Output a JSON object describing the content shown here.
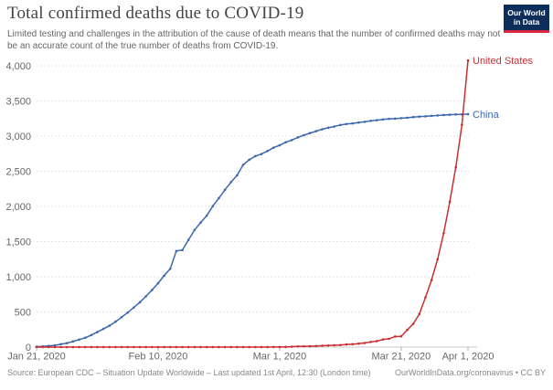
{
  "header": {
    "title": "Total confirmed deaths due to COVID-19",
    "subtitle": "Limited testing and challenges in the attribution of the cause of death means that the number of confirmed deaths may not be an accurate count of the true number of deaths from COVID-19."
  },
  "logo": {
    "line1": "Our World",
    "line2": "in Data",
    "bg_color": "#0d2e5a",
    "stripe_color": "#dc2740"
  },
  "footer": {
    "source": "Source: European CDC – Situation Update Worldwide – Last updated 1st April, 12:30 (London time)",
    "attribution": "OurWorldInData.org/coronavirus • CC BY"
  },
  "chart_data": {
    "type": "line",
    "title": "Total confirmed deaths due to COVID-19",
    "xlabel": "",
    "ylabel": "",
    "ylim": [
      0,
      4000
    ],
    "grid": "horizontal-dotted",
    "legend_position": "end-of-line-labels",
    "x_unit": "days since Jan 21, 2020 (one point per day)",
    "x_range": [
      "Jan 21, 2020",
      "Apr 1, 2020"
    ],
    "x_ticks": [
      {
        "day": 0,
        "label": "Jan 21, 2020"
      },
      {
        "day": 20,
        "label": "Feb 10, 2020"
      },
      {
        "day": 40,
        "label": "Mar 1, 2020"
      },
      {
        "day": 60,
        "label": "Mar 21, 2020"
      },
      {
        "day": 71,
        "label": "Apr 1, 2020"
      }
    ],
    "y_ticks": [
      {
        "value": 0,
        "label": "0"
      },
      {
        "value": 500,
        "label": "500"
      },
      {
        "value": 1000,
        "label": "1,000"
      },
      {
        "value": 1500,
        "label": "1,500"
      },
      {
        "value": 2000,
        "label": "2,000"
      },
      {
        "value": 2500,
        "label": "2,500"
      },
      {
        "value": 3000,
        "label": "3,000"
      },
      {
        "value": 3500,
        "label": "3,500"
      },
      {
        "value": 4000,
        "label": "4,000"
      }
    ],
    "series": [
      {
        "name": "China",
        "color": "#3d68ae",
        "values": [
          6,
          9,
          17,
          25,
          41,
          56,
          80,
          106,
          132,
          170,
          213,
          259,
          304,
          361,
          425,
          491,
          563,
          637,
          722,
          811,
          908,
          1016,
          1113,
          1367,
          1380,
          1523,
          1665,
          1770,
          1868,
          2004,
          2118,
          2236,
          2345,
          2442,
          2592,
          2663,
          2715,
          2744,
          2788,
          2835,
          2870,
          2912,
          2943,
          2981,
          3013,
          3042,
          3070,
          3097,
          3119,
          3136,
          3158,
          3172,
          3180,
          3193,
          3203,
          3217,
          3226,
          3237,
          3245,
          3248,
          3255,
          3261,
          3270,
          3277,
          3281,
          3287,
          3293,
          3300,
          3304,
          3308,
          3309,
          3312
        ]
      },
      {
        "name": "United States",
        "color": "#c92f32",
        "values": [
          0,
          0,
          0,
          0,
          0,
          0,
          0,
          0,
          0,
          0,
          0,
          0,
          0,
          0,
          0,
          0,
          0,
          0,
          0,
          0,
          0,
          0,
          0,
          0,
          0,
          0,
          0,
          0,
          0,
          0,
          0,
          0,
          0,
          0,
          0,
          0,
          0,
          0,
          0,
          1,
          1,
          2,
          6,
          9,
          11,
          12,
          15,
          19,
          22,
          26,
          29,
          38,
          41,
          48,
          58,
          73,
          85,
          108,
          118,
          150,
          153,
          244,
          331,
          471,
          706,
          953,
          1250,
          1620,
          2065,
          2560,
          3160,
          4076
        ]
      }
    ]
  }
}
